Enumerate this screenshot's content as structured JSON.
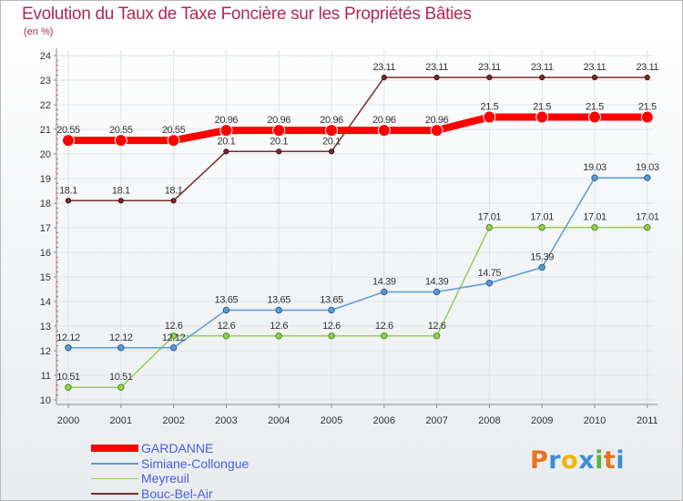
{
  "chart_data": {
    "type": "line",
    "title": "Evolution du Taux de Taxe Foncière sur les Propriétés Bâties",
    "ylabel": "(en %)",
    "xlabel": "",
    "categories": [
      "2000",
      "2001",
      "2002",
      "2003",
      "2004",
      "2005",
      "2006",
      "2007",
      "2008",
      "2009",
      "2010",
      "2011"
    ],
    "ylim": [
      10,
      24
    ],
    "yticks": [
      "10",
      "11",
      "12",
      "13",
      "14",
      "15",
      "16",
      "17",
      "18",
      "19",
      "20",
      "21",
      "22",
      "23",
      "24"
    ],
    "series": [
      {
        "name": "GARDANNE",
        "color": "#ff0000",
        "values": [
          20.55,
          20.55,
          20.55,
          20.96,
          20.96,
          20.96,
          20.96,
          20.96,
          21.5,
          21.5,
          21.5,
          21.5
        ],
        "labels": [
          "20.55",
          "20.55",
          "20.55",
          "20.96",
          "20.96",
          "20.96",
          "20.96",
          "20.96",
          "21.5",
          "21.5",
          "21.5",
          "21.5"
        ]
      },
      {
        "name": "Simiane-Collongue",
        "color": "#5b9bd5",
        "values": [
          12.12,
          12.12,
          12.12,
          13.65,
          13.65,
          13.65,
          14.39,
          14.39,
          14.75,
          15.39,
          19.03,
          19.03
        ],
        "labels": [
          "12.12",
          "12.12",
          "12.12",
          "13.65",
          "13.65",
          "13.65",
          "14.39",
          "14.39",
          "14.75",
          "15.39",
          "19.03",
          "19.03"
        ]
      },
      {
        "name": "Meyreuil",
        "color": "#92d050",
        "values": [
          10.51,
          10.51,
          12.6,
          12.6,
          12.6,
          12.6,
          12.6,
          12.6,
          17.01,
          17.01,
          17.01,
          17.01
        ],
        "labels": [
          "10.51",
          "10.51",
          "12.6",
          "12.6",
          "12.6",
          "12.6",
          "12.6",
          "12.6",
          "17.01",
          "17.01",
          "17.01",
          "17.01"
        ]
      },
      {
        "name": "Bouc-Bel-Air",
        "color": "#7b2c2c",
        "values": [
          18.1,
          18.1,
          18.1,
          20.1,
          20.1,
          20.1,
          23.11,
          23.11,
          23.11,
          23.11,
          23.11,
          23.11
        ],
        "labels": [
          "18.1",
          "18.1",
          "18.1",
          "20.1",
          "20.1",
          "20.1",
          "23.11",
          "23.11",
          "23.11",
          "23.11",
          "23.11",
          "23.11"
        ]
      }
    ]
  },
  "logo": {
    "letters": [
      "P",
      "r",
      "o",
      "x",
      "i",
      "t",
      "i"
    ],
    "colors": [
      "#e8731a",
      "#3a8fd6",
      "#f0b400",
      "#3a8fd6",
      "#5bb43c",
      "#e8731a",
      "#3a8fd6"
    ]
  }
}
